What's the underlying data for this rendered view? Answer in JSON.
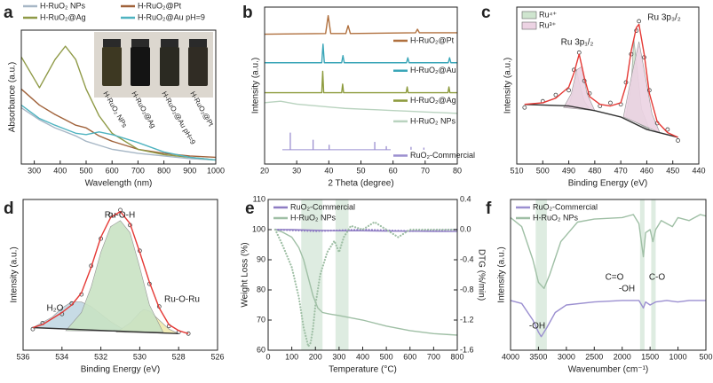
{
  "chart_data": [
    {
      "type": "line",
      "label": "a",
      "xlabel": "Wavelength (nm)",
      "ylabel": "Absorbance (a.u.)",
      "legend": "top",
      "xlim": [
        250,
        1000
      ],
      "ylim": [
        0,
        1
      ],
      "xticks": [
        300,
        400,
        500,
        600,
        700,
        800,
        900,
        1000
      ],
      "annotations": [
        "H-RuO₂ NPs",
        "H-RuO₂@Ag",
        "H-RuO₂@Au pH=9",
        "H-RuO₂@Pt"
      ],
      "series": [
        {
          "name": "H-RuO₂ NPs",
          "color": "#a7b7c6",
          "style": "line",
          "x": [
            250,
            320,
            380,
            420,
            460,
            500,
            550,
            600,
            700,
            800,
            900,
            1000
          ],
          "values": [
            0.42,
            0.33,
            0.27,
            0.24,
            0.21,
            0.17,
            0.14,
            0.11,
            0.08,
            0.06,
            0.04,
            0.03
          ]
        },
        {
          "name": "H-RuO₂@Pt",
          "color": "#a0623a",
          "style": "line",
          "x": [
            250,
            320,
            380,
            420,
            460,
            500,
            550,
            600,
            700,
            800,
            900,
            1000
          ],
          "values": [
            0.56,
            0.44,
            0.37,
            0.33,
            0.29,
            0.27,
            0.21,
            0.17,
            0.11,
            0.08,
            0.06,
            0.05
          ]
        },
        {
          "name": "H-RuO₂@Ag",
          "color": "#8f9a47",
          "style": "line",
          "x": [
            250,
            320,
            380,
            420,
            460,
            500,
            550,
            600,
            700,
            800,
            900,
            1000
          ],
          "values": [
            0.8,
            0.57,
            0.78,
            0.88,
            0.78,
            0.56,
            0.36,
            0.23,
            0.11,
            0.07,
            0.05,
            0.03
          ]
        },
        {
          "name": "H-RuO₂@Au pH=9",
          "color": "#4fb3c0",
          "style": "line",
          "x": [
            250,
            320,
            380,
            420,
            460,
            500,
            550,
            600,
            700,
            800,
            900,
            1000
          ],
          "values": [
            0.44,
            0.34,
            0.29,
            0.26,
            0.23,
            0.22,
            0.24,
            0.22,
            0.16,
            0.09,
            0.05,
            0.03
          ]
        }
      ]
    },
    {
      "type": "line",
      "label": "b",
      "xlabel": "2 Theta (degree)",
      "ylabel": "Intensity (a.u.)",
      "legend": "inline",
      "xlim": [
        20,
        80
      ],
      "ylim": [
        -1,
        10
      ],
      "xticks": [
        20,
        30,
        40,
        50,
        60,
        70,
        80
      ],
      "series": [
        {
          "name": "H-RuO₂@Pt",
          "color": "#b0703e",
          "style": "line",
          "x": [
            20,
            39,
            39.8,
            40.6,
            45.3,
            46,
            46.7,
            67,
            67.6,
            68.2,
            80
          ],
          "values": [
            8.1,
            8.15,
            9.4,
            8.15,
            8.15,
            8.7,
            8.15,
            8.2,
            8.45,
            8.2,
            8.2
          ]
        },
        {
          "name": "H-RuO₂@Au",
          "color": "#3aa6b8",
          "style": "line",
          "x": [
            20,
            37.8,
            38.2,
            38.6,
            44,
            44.4,
            44.8,
            64.2,
            64.6,
            65,
            77.2,
            77.6,
            78,
            80
          ],
          "values": [
            6.1,
            6.1,
            7.4,
            6.1,
            6.1,
            6.6,
            6.1,
            6.1,
            6.45,
            6.1,
            6.1,
            6.45,
            6.1,
            6.1
          ]
        },
        {
          "name": "H-RuO₂@Ag",
          "color": "#8c9a3c",
          "style": "line",
          "x": [
            20,
            37.8,
            38.1,
            38.4,
            44,
            44.3,
            44.6,
            64.1,
            64.4,
            64.7,
            77.1,
            77.4,
            77.7,
            80
          ],
          "values": [
            4.0,
            4.0,
            5.5,
            4.0,
            4.0,
            4.6,
            4.0,
            4.0,
            4.4,
            4.0,
            4.0,
            4.4,
            4.0,
            4.0
          ]
        },
        {
          "name": "H-RuO₂ NPs",
          "color": "#b9d3bf",
          "style": "line",
          "x": [
            20,
            25,
            30,
            35,
            40,
            45,
            50,
            55,
            60,
            65,
            70,
            75,
            80
          ],
          "values": [
            3.3,
            3.4,
            3.2,
            3.1,
            3.0,
            2.9,
            2.85,
            2.8,
            2.75,
            2.7,
            2.65,
            2.6,
            2.55
          ]
        },
        {
          "name": "RuO₂-Commercial",
          "color": "#9b8fd0",
          "style": "stick",
          "x": [
            28,
            35.1,
            40.1,
            54.3,
            57.9,
            65.6,
            69.6
          ],
          "values": [
            1.2,
            0.7,
            0.35,
            0.55,
            0.25,
            0.2,
            0.15
          ]
        }
      ]
    },
    {
      "type": "line",
      "label": "c",
      "xlabel": "Binding Energy (eV)",
      "ylabel": "Intensity (a.u.)",
      "legend": "top-left",
      "xlim": [
        510,
        440
      ],
      "ylim": [
        0,
        1
      ],
      "xticks": [
        510,
        500,
        490,
        480,
        470,
        460,
        450,
        440
      ],
      "annotations": [
        "Ru 3p₁/₂",
        "Ru 3p₃/₂"
      ],
      "series": [
        {
          "name": "Ru⁴⁺",
          "color": "#cfe5cf",
          "style": "area",
          "x": [
            490,
            488,
            487,
            486,
            484,
            482,
            475,
            468,
            466,
            465,
            464,
            462,
            459
          ],
          "values": [
            0.37,
            0.48,
            0.6,
            0.52,
            0.4,
            0.35,
            null,
            0.3,
            0.5,
            0.8,
            0.65,
            0.35,
            0.22
          ]
        },
        {
          "name": "Ru³⁺",
          "color": "#ecd3e3",
          "style": "area",
          "x": [
            492,
            489,
            487,
            485,
            483,
            480,
            475,
            469,
            466,
            463,
            461,
            458,
            455
          ],
          "values": [
            0.36,
            0.45,
            0.6,
            0.62,
            0.45,
            0.34,
            null,
            0.3,
            0.55,
            0.78,
            0.6,
            0.32,
            0.2
          ]
        },
        {
          "color": "#333333",
          "style": "line",
          "x": [
            507,
            490,
            480,
            470,
            460,
            448
          ],
          "values": [
            0.38,
            0.37,
            0.34,
            0.3,
            0.22,
            0.17
          ]
        },
        {
          "color": "#444444",
          "style": "scatter",
          "x": [
            507,
            500,
            495,
            490,
            488,
            486,
            484,
            482,
            478,
            474,
            470,
            468,
            466,
            464,
            463,
            461,
            459,
            456,
            452,
            448
          ],
          "values": [
            0.36,
            0.4,
            0.44,
            0.47,
            0.6,
            0.71,
            0.53,
            0.45,
            0.37,
            0.39,
            0.38,
            0.52,
            0.7,
            0.85,
            0.91,
            0.68,
            0.47,
            0.26,
            0.22,
            0.15
          ]
        },
        {
          "color": "#e53935",
          "style": "line",
          "x": [
            507,
            500,
            495,
            490,
            488,
            486,
            484,
            482,
            478,
            474,
            470,
            468,
            466,
            464,
            463,
            461,
            459,
            456,
            452,
            448
          ],
          "values": [
            0.38,
            0.39,
            0.42,
            0.49,
            0.58,
            0.7,
            0.55,
            0.43,
            0.38,
            0.37,
            0.39,
            0.5,
            0.72,
            0.87,
            0.89,
            0.7,
            0.45,
            0.27,
            0.2,
            0.17
          ]
        }
      ]
    },
    {
      "type": "line",
      "label": "d",
      "xlabel": "Binding Energy (eV)",
      "ylabel": "Intensity (a.u.)",
      "legend": "none",
      "xlim": [
        536,
        526
      ],
      "ylim": [
        0,
        1
      ],
      "xticks": [
        536,
        534,
        532,
        530,
        528,
        526
      ],
      "annotations": [
        "Ru-O-H",
        "H₂O",
        "Ru-O-Ru"
      ],
      "series": [
        {
          "color": "#c2d8e3",
          "style": "area",
          "x": [
            535.5,
            534.5,
            534,
            533.5,
            533,
            532.5,
            532,
            531.5,
            531,
            530.5
          ],
          "values": [
            0.15,
            0.22,
            0.28,
            0.32,
            0.32,
            0.29,
            0.24,
            0.19,
            0.15,
            0.12
          ]
        },
        {
          "color": "#f0eab0",
          "style": "area",
          "x": [
            531.2,
            530.5,
            530,
            529.8,
            529.5,
            529,
            528.5,
            528
          ],
          "values": [
            0.12,
            0.18,
            0.25,
            0.27,
            0.26,
            0.2,
            0.14,
            0.11
          ]
        },
        {
          "color": "#c9e3c4",
          "style": "area",
          "x": [
            533.8,
            533,
            532.5,
            532,
            531.5,
            531,
            530.5,
            530,
            529.5,
            528.8
          ],
          "values": [
            0.13,
            0.25,
            0.42,
            0.65,
            0.82,
            0.86,
            0.78,
            0.55,
            0.3,
            0.12
          ]
        },
        {
          "color": "#333333",
          "style": "line",
          "x": [
            535.5,
            528
          ],
          "values": [
            0.15,
            0.11
          ]
        },
        {
          "color": "#444444",
          "style": "scatter",
          "x": [
            535.5,
            535,
            534,
            533.5,
            533,
            532.5,
            532,
            531.5,
            531,
            530.5,
            530,
            529.5,
            529,
            528.5,
            528,
            527.5
          ],
          "values": [
            0.14,
            0.18,
            0.24,
            0.31,
            0.37,
            0.56,
            0.74,
            0.9,
            0.93,
            0.83,
            0.66,
            0.44,
            0.29,
            0.16,
            0.12,
            0.11
          ]
        },
        {
          "color": "#e53935",
          "style": "line",
          "x": [
            535.5,
            535,
            534,
            533.5,
            533,
            532.5,
            532,
            531.5,
            531,
            530.5,
            530,
            529.5,
            529,
            528.5,
            528,
            527.5
          ],
          "values": [
            0.15,
            0.17,
            0.25,
            0.3,
            0.38,
            0.55,
            0.75,
            0.88,
            0.92,
            0.84,
            0.65,
            0.45,
            0.28,
            0.17,
            0.13,
            0.11
          ]
        }
      ]
    },
    {
      "type": "line",
      "label": "e",
      "xlabel": "Temperature (°C)",
      "ylabel": "Weight Loss (%)",
      "y2label": "DTG (%/min)",
      "legend": "top-left",
      "xlim": [
        0,
        800
      ],
      "ylim": [
        60,
        110
      ],
      "y2lim": [
        -1.6,
        0.4
      ],
      "xticks": [
        0,
        100,
        200,
        300,
        400,
        500,
        600,
        700,
        800
      ],
      "yticks": [
        60,
        70,
        80,
        90,
        100,
        110
      ],
      "y2ticks": [
        -1.6,
        -1.2,
        -0.8,
        -0.4,
        {
          "value": 0,
          "label": "0.0"
        },
        0.4
      ],
      "bands": [
        [
          140,
          230
        ],
        [
          285,
          340
        ]
      ],
      "series": [
        {
          "name": "RuO₂-Commercial",
          "color": "#8e7cc3",
          "style": "line",
          "x": [
            30,
            100,
            200,
            300,
            400,
            500,
            600,
            700,
            800
          ],
          "values": [
            100,
            100,
            99.8,
            99.6,
            99.6,
            99.5,
            99.5,
            99.4,
            99.4
          ]
        },
        {
          "name": "H-RuO₂ NPs",
          "color": "#9fbfa5",
          "style": "line",
          "x": [
            30,
            60,
            100,
            130,
            150,
            170,
            190,
            210,
            230,
            260,
            300,
            400,
            500,
            600,
            700,
            800
          ],
          "values": [
            100,
            99.2,
            97.5,
            94,
            90,
            84,
            78,
            74,
            72.5,
            72,
            71.5,
            70,
            68,
            66.5,
            65.5,
            65
          ]
        },
        {
          "color": "#8e7cc3",
          "style": "dots",
          "axis": "y2",
          "x": [
            30,
            200,
            400,
            600,
            800
          ],
          "values": [
            0,
            -0.02,
            0,
            -0.02,
            0
          ]
        },
        {
          "color": "#9fbfa5",
          "style": "dots",
          "axis": "y2",
          "x": [
            30,
            60,
            100,
            130,
            150,
            170,
            180,
            190,
            200,
            220,
            250,
            280,
            300,
            320,
            350,
            400,
            450,
            500,
            550,
            600,
            700,
            800
          ],
          "values": [
            0,
            -0.2,
            -0.5,
            -0.9,
            -1.3,
            -1.55,
            -1.5,
            -1.3,
            -1.0,
            -0.6,
            -0.3,
            -0.15,
            -0.3,
            -0.1,
            0.05,
            0,
            0.1,
            0,
            -0.1,
            0,
            0,
            0
          ]
        }
      ]
    },
    {
      "type": "line",
      "label": "f",
      "xlabel": "Wavenumber (cm⁻¹)",
      "ylabel": "Intensity (a.u.)",
      "legend": "top-left",
      "xlim": [
        4000,
        500
      ],
      "ylim": [
        0,
        1
      ],
      "xticks": [
        4000,
        3500,
        3000,
        2500,
        2000,
        1500,
        1000,
        500
      ],
      "bands": [
        [
          3550,
          3350
        ],
        [
          1680,
          1600
        ],
        [
          1480,
          1400
        ]
      ],
      "annotations": [
        "-OH",
        "C=O",
        "-OH",
        "C-O"
      ],
      "series": [
        {
          "name": "RuO₂-Commercial",
          "color": "#9b8fd0",
          "style": "line",
          "x": [
            4000,
            3800,
            3600,
            3500,
            3450,
            3350,
            3200,
            3000,
            2500,
            2000,
            1700,
            1620,
            1580,
            1500,
            1400,
            1200,
            1000,
            800,
            500
          ],
          "values": [
            0.33,
            0.31,
            0.2,
            0.12,
            0.09,
            0.15,
            0.25,
            0.3,
            0.32,
            0.33,
            0.33,
            0.28,
            0.32,
            0.3,
            0.32,
            0.33,
            0.32,
            0.33,
            0.33
          ]
        },
        {
          "name": "H-RuO₂ NPs",
          "color": "#9fbfa5",
          "style": "line",
          "x": [
            4000,
            3800,
            3600,
            3500,
            3400,
            3300,
            3100,
            2800,
            2500,
            2000,
            1800,
            1700,
            1650,
            1620,
            1580,
            1500,
            1450,
            1400,
            1300,
            1200,
            1100,
            1000,
            800,
            600,
            500
          ],
          "values": [
            0.88,
            0.82,
            0.6,
            0.45,
            0.41,
            0.5,
            0.72,
            0.85,
            0.87,
            0.88,
            0.9,
            0.84,
            0.7,
            0.62,
            0.78,
            0.8,
            0.72,
            0.8,
            0.86,
            0.84,
            0.82,
            0.88,
            0.86,
            0.9,
            0.89
          ]
        }
      ]
    }
  ]
}
